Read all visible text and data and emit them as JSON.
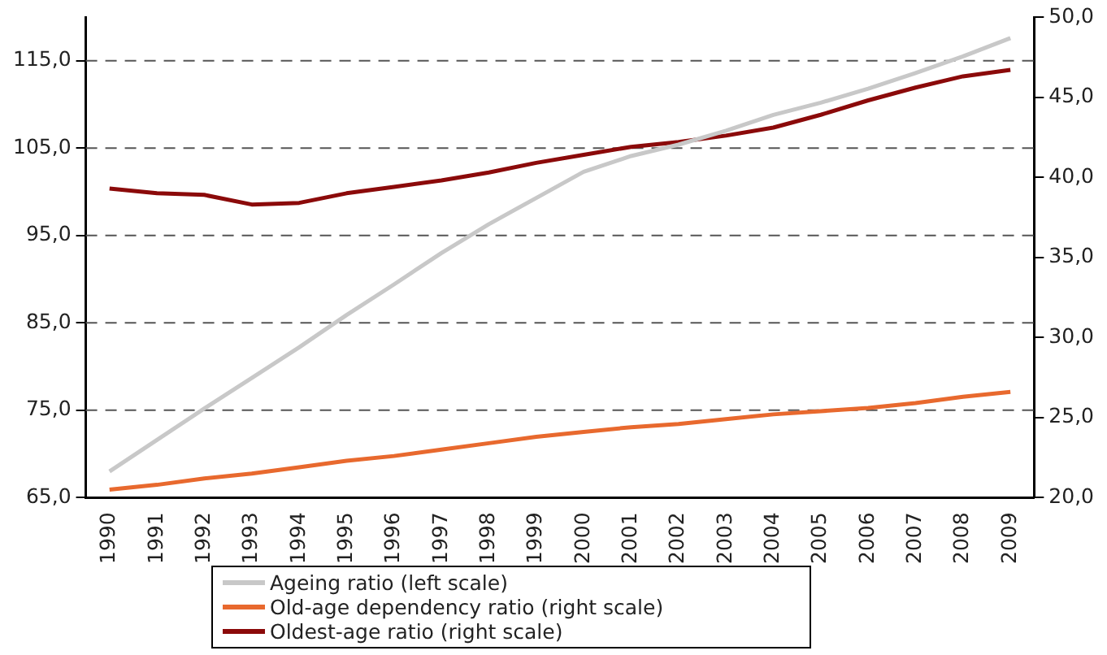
{
  "chart_data": {
    "type": "line",
    "categories": [
      "1990",
      "1991",
      "1992",
      "1993",
      "1994",
      "1995",
      "1996",
      "1997",
      "1998",
      "1999",
      "2000",
      "2001",
      "2002",
      "2003",
      "2004",
      "2005",
      "2006",
      "2007",
      "2008",
      "2009"
    ],
    "series": [
      {
        "name": "Ageing ratio (left scale)",
        "color": "#c8c8c8",
        "values": [
          68.0,
          71.6,
          75.2,
          78.7,
          82.2,
          85.9,
          89.4,
          93.0,
          96.3,
          99.3,
          102.3,
          104.1,
          105.4,
          107.0,
          108.8,
          110.2,
          111.8,
          113.6,
          115.5,
          117.6
        ]
      },
      {
        "name": "Old-age dependency ratio (right scale)",
        "color": "#e8692e",
        "axis": "y2",
        "values": [
          20.5,
          20.8,
          21.2,
          21.5,
          21.9,
          22.3,
          22.6,
          23.0,
          23.4,
          23.8,
          24.1,
          24.4,
          24.6,
          24.9,
          25.2,
          25.4,
          25.6,
          25.9,
          26.3,
          26.6
        ]
      },
      {
        "name": "Oldest-age ratio (right scale)",
        "color": "#8b0a0a",
        "axis": "y2",
        "values": [
          39.3,
          39.0,
          38.9,
          38.3,
          38.4,
          39.0,
          39.4,
          39.8,
          40.3,
          40.9,
          41.4,
          41.9,
          42.2,
          42.6,
          43.1,
          43.9,
          44.8,
          45.6,
          46.3,
          46.7
        ]
      }
    ],
    "ylim": [
      65,
      120
    ],
    "yticks": [
      {
        "value": 65,
        "label": "65,0"
      },
      {
        "value": 75,
        "label": "75,0"
      },
      {
        "value": 85,
        "label": "85,0"
      },
      {
        "value": 95,
        "label": "95,0"
      },
      {
        "value": 105,
        "label": "105,0"
      },
      {
        "value": 115,
        "label": "115,0"
      }
    ],
    "y2lim": [
      20,
      50
    ],
    "y2ticks": [
      {
        "value": 20,
        "label": "20,0"
      },
      {
        "value": 25,
        "label": "25,0"
      },
      {
        "value": 30,
        "label": "30,0"
      },
      {
        "value": 35,
        "label": "35,0"
      },
      {
        "value": 40,
        "label": "40,0"
      },
      {
        "value": 45,
        "label": "45,0"
      },
      {
        "value": 50,
        "label": "50,0"
      }
    ],
    "grid": "y",
    "legend": "bottom",
    "marker": "none",
    "line_style": "solid"
  }
}
